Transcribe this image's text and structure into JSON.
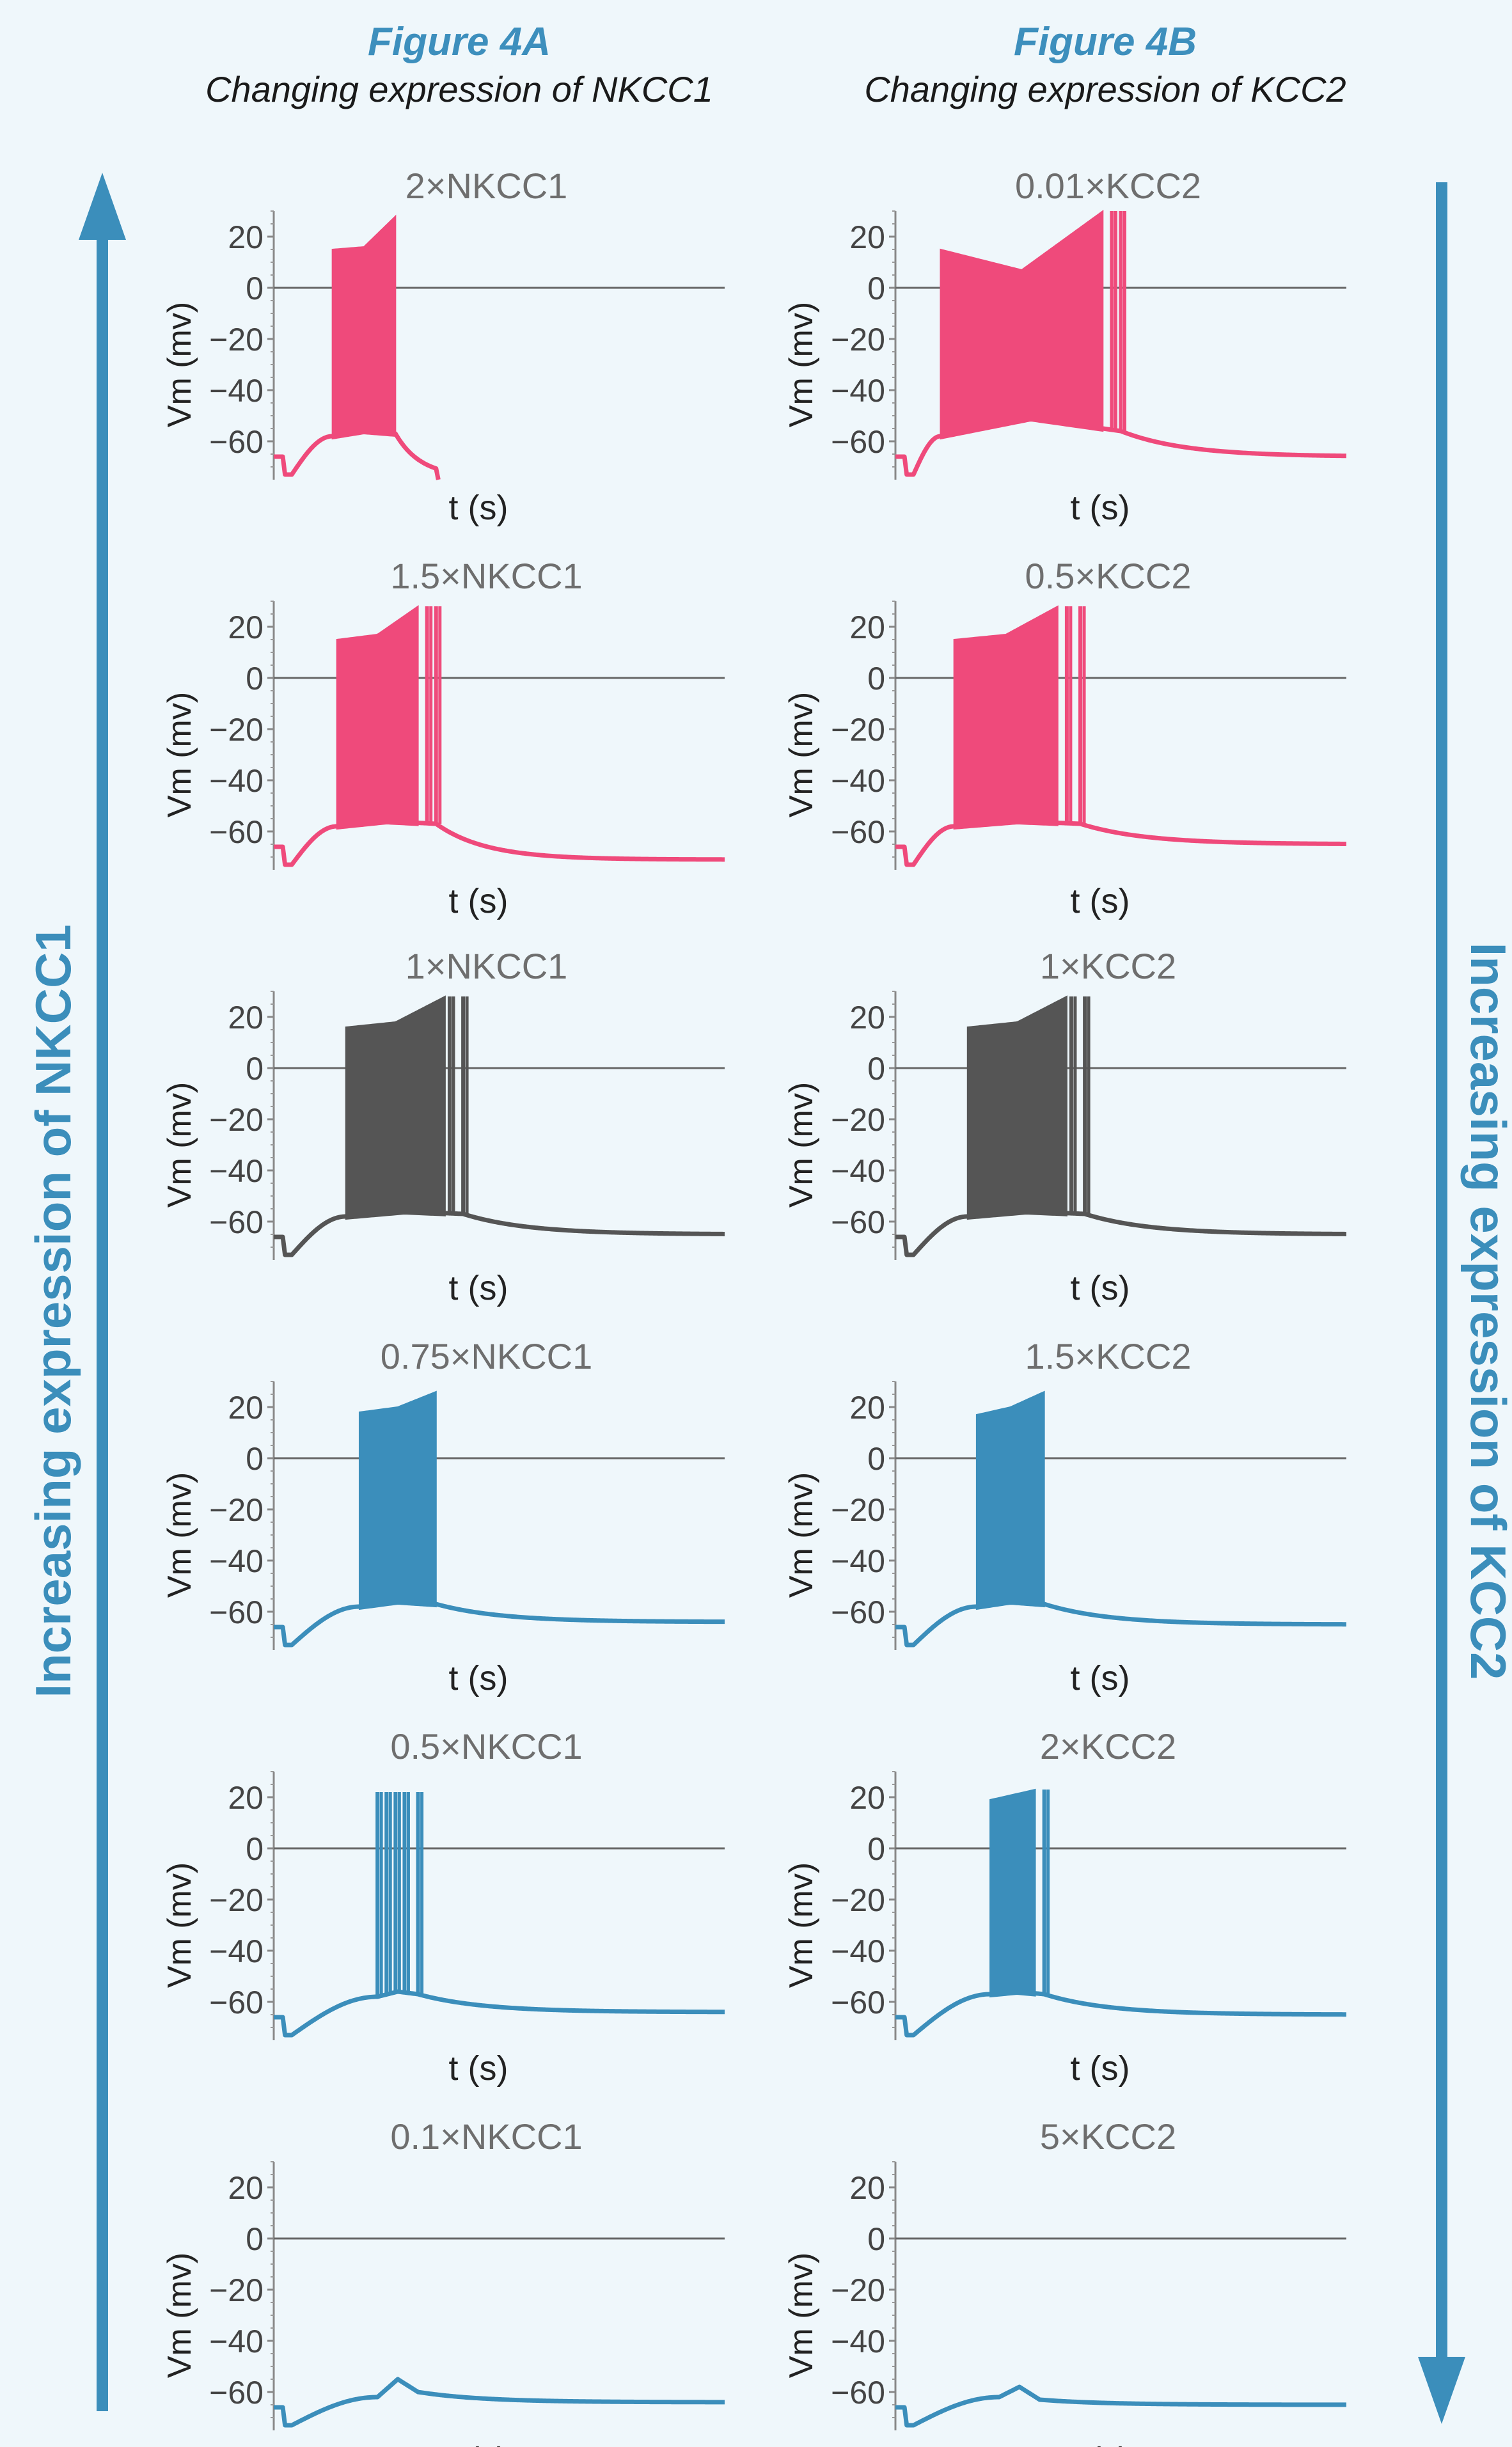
{
  "header": {
    "left_label": "Figure 4A",
    "left_sub": "Changing expression of NKCC1",
    "right_label": "Figure 4B",
    "right_sub": "Changing expression of KCC2"
  },
  "arrows": {
    "left": "Increasing expression of NKCC1",
    "right": "Increasing expression of KCC2"
  },
  "colors": {
    "high": "#ef4a7b",
    "baseline": "#555555",
    "low": "#3b8ebb",
    "arrow": "#3b8ebb"
  },
  "chart_data": [
    {
      "type": "line",
      "panel": "A",
      "title": "2×NKCC1",
      "xlabel": "t (s)",
      "ylabel": "Vm (mv)",
      "yticks": [
        20,
        0,
        -20,
        -40,
        -60
      ],
      "ylim": [
        -75,
        30
      ],
      "color": "high",
      "trace": {
        "rest": -66,
        "burst": [
          0.13,
          0.27
        ],
        "baseline": [
          -58,
          -56,
          -57
        ],
        "peak": [
          15,
          16,
          28
        ],
        "tail": -74,
        "tail_decay": "fast",
        "isolated": []
      }
    },
    {
      "type": "line",
      "panel": "B",
      "title": "0.01×KCC2",
      "xlabel": "t (s)",
      "ylabel": "Vm (mv)",
      "yticks": [
        20,
        0,
        -20,
        -40,
        -60
      ],
      "ylim": [
        -75,
        30
      ],
      "color": "high",
      "trace": {
        "rest": -66,
        "burst": [
          0.1,
          0.46
        ],
        "baseline": [
          -58,
          -51,
          -56
        ],
        "peak": [
          15,
          7,
          30
        ],
        "tail": -66,
        "tail_decay": "slow",
        "isolated": [
          0.48,
          0.5
        ]
      }
    },
    {
      "type": "line",
      "panel": "A",
      "title": "1.5×NKCC1",
      "xlabel": "t (s)",
      "ylabel": "Vm (mv)",
      "yticks": [
        20,
        0,
        -20,
        -40,
        -60
      ],
      "ylim": [
        -75,
        30
      ],
      "color": "high",
      "trace": {
        "rest": -66,
        "burst": [
          0.14,
          0.32
        ],
        "baseline": [
          -58,
          -56,
          -57
        ],
        "peak": [
          15,
          17,
          28
        ],
        "tail": -71,
        "tail_decay": "medium",
        "isolated": [
          0.34,
          0.36
        ]
      }
    },
    {
      "type": "line",
      "panel": "B",
      "title": "0.5×KCC2",
      "xlabel": "t (s)",
      "ylabel": "Vm (mv)",
      "yticks": [
        20,
        0,
        -20,
        -40,
        -60
      ],
      "ylim": [
        -75,
        30
      ],
      "color": "high",
      "trace": {
        "rest": -66,
        "burst": [
          0.13,
          0.36
        ],
        "baseline": [
          -58,
          -56,
          -57
        ],
        "peak": [
          15,
          17,
          28
        ],
        "tail": -65,
        "tail_decay": "slow",
        "isolated": [
          0.38,
          0.41
        ]
      }
    },
    {
      "type": "line",
      "panel": "A",
      "title": "1×NKCC1",
      "xlabel": "t (s)",
      "ylabel": "Vm (mv)",
      "yticks": [
        20,
        0,
        -20,
        -40,
        -60
      ],
      "ylim": [
        -75,
        30
      ],
      "color": "baseline",
      "trace": {
        "rest": -66,
        "burst": [
          0.16,
          0.38
        ],
        "baseline": [
          -58,
          -56,
          -57
        ],
        "peak": [
          16,
          18,
          28
        ],
        "tail": -65,
        "tail_decay": "slow",
        "isolated": [
          0.39,
          0.42
        ]
      }
    },
    {
      "type": "line",
      "panel": "B",
      "title": "1×KCC2",
      "xlabel": "t (s)",
      "ylabel": "Vm (mv)",
      "yticks": [
        20,
        0,
        -20,
        -40,
        -60
      ],
      "ylim": [
        -75,
        30
      ],
      "color": "baseline",
      "trace": {
        "rest": -66,
        "burst": [
          0.16,
          0.38
        ],
        "baseline": [
          -58,
          -56,
          -57
        ],
        "peak": [
          16,
          18,
          28
        ],
        "tail": -65,
        "tail_decay": "slow",
        "isolated": [
          0.39,
          0.42
        ]
      }
    },
    {
      "type": "line",
      "panel": "A",
      "title": "0.75×NKCC1",
      "xlabel": "t (s)",
      "ylabel": "Vm (mv)",
      "yticks": [
        20,
        0,
        -20,
        -40,
        -60
      ],
      "ylim": [
        -75,
        30
      ],
      "color": "low",
      "trace": {
        "rest": -66,
        "burst": [
          0.19,
          0.36
        ],
        "baseline": [
          -58,
          -56,
          -57
        ],
        "peak": [
          18,
          20,
          26
        ],
        "tail": -64,
        "tail_decay": "slow",
        "isolated": []
      }
    },
    {
      "type": "line",
      "panel": "B",
      "title": "1.5×KCC2",
      "xlabel": "t (s)",
      "ylabel": "Vm (mv)",
      "yticks": [
        20,
        0,
        -20,
        -40,
        -60
      ],
      "ylim": [
        -75,
        30
      ],
      "color": "low",
      "trace": {
        "rest": -66,
        "burst": [
          0.18,
          0.33
        ],
        "baseline": [
          -58,
          -56,
          -57
        ],
        "peak": [
          17,
          20,
          26
        ],
        "tail": -65,
        "tail_decay": "slow",
        "isolated": []
      }
    },
    {
      "type": "line",
      "panel": "A",
      "title": "0.5×NKCC1",
      "xlabel": "t (s)",
      "ylabel": "Vm (mv)",
      "yticks": [
        20,
        0,
        -20,
        -40,
        -60
      ],
      "ylim": [
        -75,
        30
      ],
      "color": "low",
      "trace": {
        "rest": -66,
        "burst": [],
        "baseline": [
          -58,
          -56,
          -57
        ],
        "peak": [
          22,
          22,
          22
        ],
        "tail": -64,
        "tail_decay": "slow",
        "isolated": [
          0.23,
          0.25,
          0.27,
          0.29,
          0.32
        ]
      }
    },
    {
      "type": "line",
      "panel": "B",
      "title": "2×KCC2",
      "xlabel": "t (s)",
      "ylabel": "Vm (mv)",
      "yticks": [
        20,
        0,
        -20,
        -40,
        -60
      ],
      "ylim": [
        -75,
        30
      ],
      "color": "low",
      "trace": {
        "rest": -66,
        "burst": [
          0.21,
          0.31
        ],
        "baseline": [
          -57,
          -56,
          -57
        ],
        "peak": [
          19,
          21,
          23
        ],
        "tail": -65,
        "tail_decay": "slow",
        "isolated": [
          0.33
        ]
      }
    },
    {
      "type": "line",
      "panel": "A",
      "title": "0.1×NKCC1",
      "xlabel": "t (s)",
      "ylabel": "Vm (mv)",
      "yticks": [
        20,
        0,
        -20,
        -40,
        -60
      ],
      "ylim": [
        -75,
        30
      ],
      "color": "low",
      "trace": {
        "rest": -66,
        "burst": [],
        "baseline": [
          -62,
          -55,
          -60
        ],
        "peak": [
          0,
          0,
          0
        ],
        "tail": -64,
        "tail_decay": "slow",
        "isolated": []
      }
    },
    {
      "type": "line",
      "panel": "B",
      "title": "5×KCC2",
      "xlabel": "t (s)",
      "ylabel": "Vm (mv)",
      "yticks": [
        20,
        0,
        -20,
        -40,
        -60
      ],
      "ylim": [
        -75,
        30
      ],
      "color": "low",
      "trace": {
        "rest": -66,
        "burst": [],
        "baseline": [
          -62,
          -58,
          -63
        ],
        "peak": [
          0,
          0,
          0
        ],
        "tail": -65,
        "tail_decay": "slow",
        "isolated": []
      }
    }
  ]
}
